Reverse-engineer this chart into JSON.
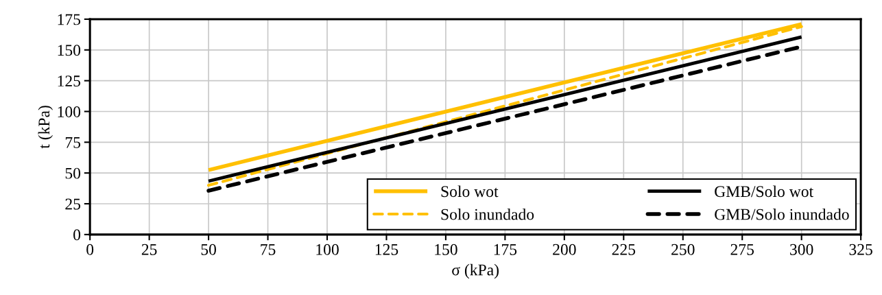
{
  "chart_data": {
    "type": "line",
    "xlabel": "σ (kPa)",
    "ylabel": "t (kPa)",
    "x": [
      50,
      300
    ],
    "series": [
      {
        "name": "Solo wot",
        "color": "#ffc000",
        "values": [
          52.4,
          171
        ],
        "line_style": "solid"
      },
      {
        "name": "Solo inundado",
        "color": "#ffc000",
        "values": [
          40,
          169
        ],
        "line_style": "dashed"
      },
      {
        "name": "GMB/Solo wot",
        "color": "#000000",
        "values": [
          43.4,
          160.5
        ],
        "line_style": "solid"
      },
      {
        "name": "GMB/Solo inundado",
        "color": "#000000",
        "values": [
          35.6,
          152.7
        ],
        "line_style": "dashed"
      }
    ],
    "xlim": [
      0,
      325
    ],
    "xticks": [
      0,
      25,
      50,
      75,
      100,
      125,
      150,
      175,
      200,
      225,
      250,
      275,
      300,
      325
    ],
    "ylim": [
      0,
      175
    ],
    "yticks": [
      0,
      25,
      50,
      75,
      100,
      125,
      150,
      175
    ],
    "grid": true,
    "legend": "bottom right",
    "marker": "none"
  }
}
